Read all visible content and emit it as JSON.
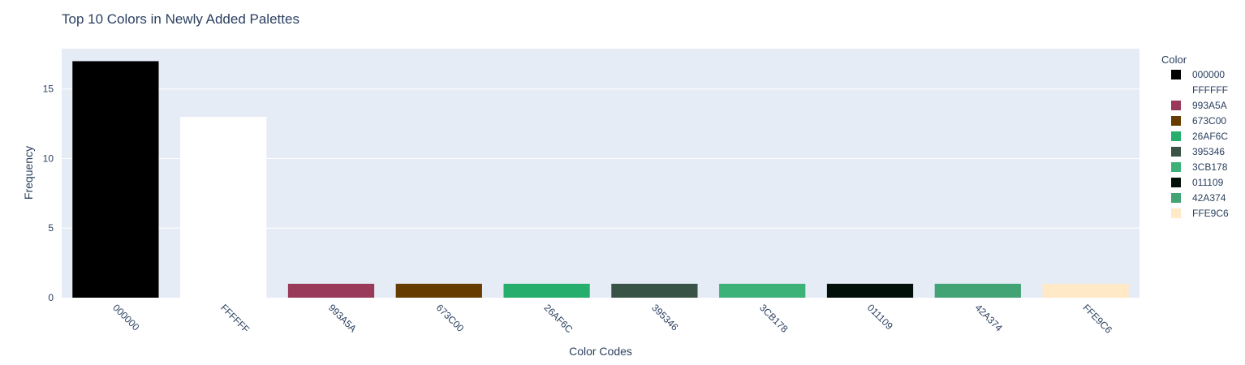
{
  "chart_data": {
    "type": "bar",
    "title": "Top 10 Colors in Newly Added Palettes",
    "xlabel": "Color Codes",
    "ylabel": "Frequency",
    "categories": [
      "000000",
      "FFFFFF",
      "993A5A",
      "673C00",
      "26AF6C",
      "395346",
      "3CB178",
      "011109",
      "42A374",
      "FFE9C6"
    ],
    "values": [
      17,
      13,
      1,
      1,
      1,
      1,
      1,
      1,
      1,
      1
    ],
    "colors": [
      "#000000",
      "#FFFFFF",
      "#993A5A",
      "#673C00",
      "#26AF6C",
      "#395346",
      "#3CB178",
      "#011109",
      "#42A374",
      "#FFE9C6"
    ],
    "ylim": [
      0,
      17.9
    ],
    "yticks": [
      0,
      5,
      10,
      15
    ],
    "grid": true,
    "legend": {
      "title": "Color",
      "placement": "right",
      "entries": [
        "000000",
        "FFFFFF",
        "993A5A",
        "673C00",
        "26AF6C",
        "395346",
        "3CB178",
        "011109",
        "42A374",
        "FFE9C6"
      ]
    },
    "plot_bgcolor": "#E5ECF6"
  }
}
